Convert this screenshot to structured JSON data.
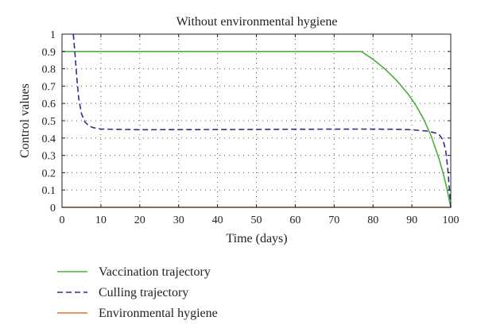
{
  "chart_data": {
    "type": "line",
    "title": "Without environmental hygiene",
    "xlabel": "Time (days)",
    "ylabel": "Control values",
    "xlim": [
      0,
      100
    ],
    "ylim": [
      0,
      1
    ],
    "xticks": [
      0,
      10,
      20,
      30,
      40,
      50,
      60,
      70,
      80,
      90,
      100
    ],
    "yticks": [
      0,
      0.1,
      0.2,
      0.3,
      0.4,
      0.5,
      0.6,
      0.7,
      0.8,
      0.9,
      1
    ],
    "ytick_labels": [
      "0",
      "0.1",
      "0.2",
      "0.3",
      "0.4",
      "0.5",
      "0.6",
      "0.7",
      "0.8",
      "0.9",
      "1"
    ],
    "grid": "dotted",
    "legend_position": "below",
    "series": [
      {
        "name": "Vaccination trajectory",
        "color": "#4cae3c",
        "style": "solid",
        "x": [
          0,
          77,
          80,
          83,
          86,
          89,
          91,
          93,
          95,
          97,
          98,
          99,
          100
        ],
        "y": [
          0.9,
          0.9,
          0.855,
          0.8,
          0.735,
          0.655,
          0.59,
          0.51,
          0.41,
          0.28,
          0.2,
          0.11,
          0
        ]
      },
      {
        "name": "Culling trajectory",
        "color": "#2e2e8e",
        "style": "dashed",
        "x": [
          2.9,
          3.3,
          3.8,
          4.3,
          5,
          6,
          7,
          8,
          10,
          20,
          40,
          60,
          77,
          85,
          90,
          94,
          96,
          97,
          98,
          98.7,
          99.2,
          99.6,
          100
        ],
        "y": [
          1,
          0.9,
          0.75,
          0.63,
          0.54,
          0.49,
          0.47,
          0.46,
          0.452,
          0.448,
          0.449,
          0.451,
          0.452,
          0.451,
          0.448,
          0.44,
          0.43,
          0.42,
          0.39,
          0.33,
          0.23,
          0.12,
          0
        ]
      },
      {
        "name": "Environmental hygiene",
        "color": "#e0732a",
        "style": "solid",
        "x": [
          0,
          100
        ],
        "y": [
          0,
          0
        ]
      }
    ]
  }
}
